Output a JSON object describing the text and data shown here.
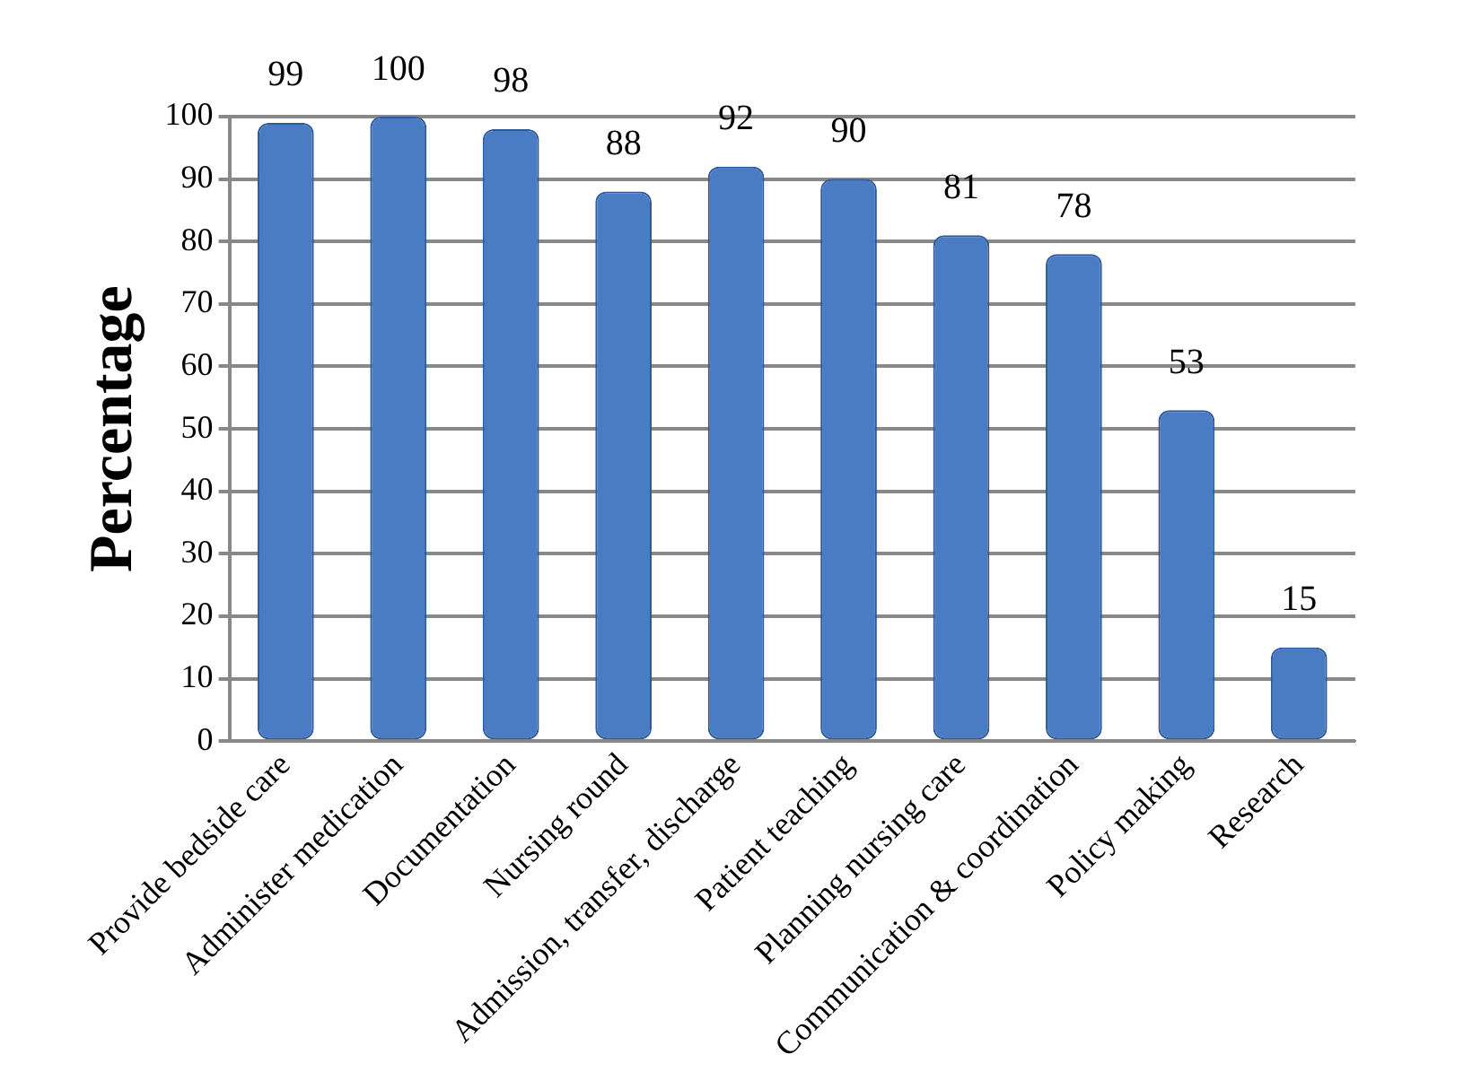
{
  "chart_data": {
    "type": "bar",
    "ylabel": "Percentage",
    "categories": [
      "Provide bedside care",
      "Administer medication",
      "Documentation",
      "Nursing round",
      "Admission, transfer, discharge",
      "Patient teaching",
      "Planning nursing care",
      "Communication & coordination",
      "Policy making",
      "Research"
    ],
    "values": [
      99,
      100,
      98,
      88,
      92,
      90,
      81,
      78,
      53,
      15
    ],
    "color": "#4a7cc4",
    "ylim": [
      0,
      100
    ],
    "yticks": [
      0,
      10,
      20,
      30,
      40,
      50,
      60,
      70,
      80,
      90,
      100
    ],
    "grid": "y",
    "data_labels": true,
    "legend": false
  }
}
